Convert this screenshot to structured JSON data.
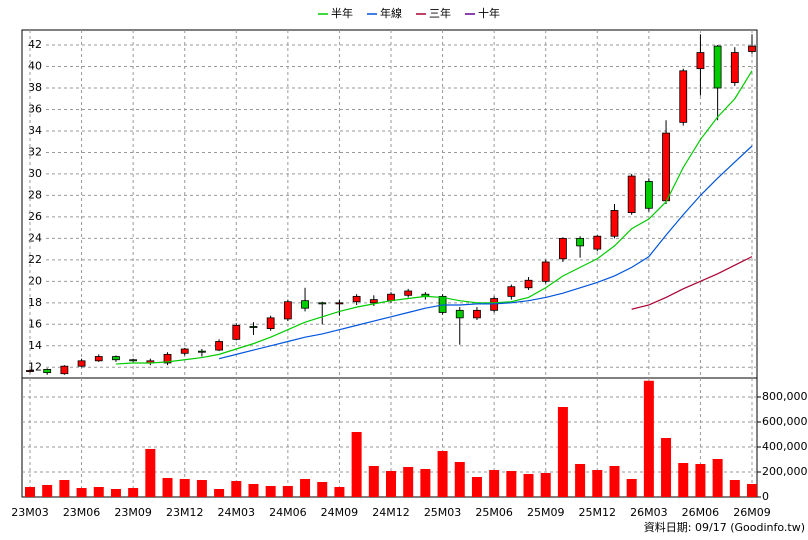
{
  "chart_data": [
    {
      "type": "candlestick",
      "categories": [
        "23M03",
        null,
        null,
        "23M06",
        null,
        null,
        "23M09",
        null,
        null,
        "23M12",
        null,
        null,
        "24M03",
        null,
        null,
        "24M06",
        null,
        null,
        "24M09",
        null,
        null,
        "24M12",
        null,
        null,
        "25M03",
        null,
        null,
        "25M06",
        null,
        null,
        "25M09",
        null,
        null,
        "25M12",
        null,
        null,
        "26M03",
        null,
        null,
        "26M06",
        null,
        null,
        "26M09"
      ],
      "open": [
        11.6,
        11.8,
        11.4,
        12.1,
        12.6,
        13.0,
        12.7,
        12.4,
        12.4,
        13.3,
        13.5,
        13.6,
        14.6,
        15.8,
        15.6,
        16.5,
        18.2,
        18.0,
        17.9,
        18.1,
        18.0,
        18.2,
        18.7,
        18.8,
        18.6,
        17.3,
        16.6,
        17.3,
        18.6,
        19.4,
        20.0,
        22.1,
        24.0,
        23.0,
        24.2,
        26.4,
        29.3,
        27.5,
        34.8,
        39.8,
        41.9,
        38.5,
        41.4
      ],
      "high": [
        11.8,
        11.9,
        12.2,
        12.8,
        13.2,
        13.1,
        12.8,
        12.8,
        13.4,
        13.8,
        13.7,
        14.6,
        16.1,
        16.2,
        16.8,
        18.3,
        19.4,
        18.1,
        18.3,
        18.8,
        18.7,
        19.0,
        19.3,
        19.0,
        18.8,
        17.6,
        17.6,
        18.6,
        19.7,
        20.4,
        22.0,
        24.1,
        24.2,
        24.3,
        27.2,
        30.0,
        29.6,
        35.0,
        39.8,
        43.0,
        42.0,
        41.8,
        43.0
      ],
      "low": [
        11.5,
        11.3,
        11.3,
        12.0,
        12.5,
        12.5,
        12.5,
        12.2,
        12.2,
        13.1,
        13.0,
        13.5,
        14.5,
        15.0,
        15.4,
        16.3,
        17.2,
        16.0,
        16.8,
        17.8,
        17.7,
        18.0,
        18.5,
        18.3,
        16.9,
        14.1,
        16.4,
        17.1,
        18.3,
        19.2,
        19.8,
        21.8,
        22.2,
        22.8,
        24.0,
        26.2,
        26.5,
        27.2,
        34.5,
        37.3,
        35.0,
        38.2,
        41.2
      ],
      "close": [
        11.7,
        11.5,
        12.1,
        12.6,
        13.0,
        12.7,
        12.6,
        12.6,
        13.2,
        13.7,
        13.4,
        14.4,
        15.9,
        15.7,
        16.6,
        18.1,
        17.5,
        17.9,
        18.0,
        18.6,
        18.3,
        18.8,
        19.1,
        18.6,
        17.1,
        16.6,
        17.3,
        18.4,
        19.5,
        20.1,
        21.8,
        24.0,
        23.3,
        24.2,
        26.6,
        29.8,
        26.8,
        33.8,
        39.6,
        41.3,
        38.0,
        41.3,
        41.9
      ],
      "up_color": "#ff0000",
      "down_color": "#00cc00",
      "series": [
        {
          "name": "半年",
          "color": "#00cc00",
          "values": [
            null,
            null,
            null,
            null,
            null,
            12.3,
            12.4,
            12.4,
            12.5,
            12.7,
            12.9,
            13.2,
            13.7,
            14.2,
            14.8,
            15.5,
            16.2,
            16.7,
            17.2,
            17.6,
            17.9,
            18.2,
            18.4,
            18.6,
            18.5,
            18.2,
            18.0,
            18.0,
            18.1,
            18.5,
            19.4,
            20.5,
            21.3,
            22.1,
            23.3,
            24.9,
            25.8,
            27.4,
            30.6,
            33.2,
            35.3,
            37.0,
            39.6
          ]
        },
        {
          "name": "年線",
          "color": "#0055dd",
          "values": [
            null,
            null,
            null,
            null,
            null,
            null,
            null,
            null,
            null,
            null,
            null,
            12.8,
            13.2,
            13.6,
            14.0,
            14.4,
            14.8,
            15.1,
            15.5,
            15.9,
            16.3,
            16.7,
            17.1,
            17.5,
            17.8,
            17.8,
            17.9,
            17.9,
            18.0,
            18.2,
            18.5,
            18.9,
            19.4,
            19.9,
            20.5,
            21.3,
            22.3,
            24.3,
            26.2,
            28.0,
            29.6,
            31.1,
            32.6
          ]
        },
        {
          "name": "三年",
          "color": "#aa0033",
          "values": [
            null,
            null,
            null,
            null,
            null,
            null,
            null,
            null,
            null,
            null,
            null,
            null,
            null,
            null,
            null,
            null,
            null,
            null,
            null,
            null,
            null,
            null,
            null,
            null,
            null,
            null,
            null,
            null,
            null,
            null,
            null,
            null,
            null,
            null,
            null,
            17.4,
            17.8,
            18.5,
            19.3,
            20.0,
            20.7,
            21.5,
            22.3
          ]
        },
        {
          "name": "十年",
          "color": "#660099",
          "values": [
            null,
            null,
            null,
            null,
            null,
            null,
            null,
            null,
            null,
            null,
            null,
            null,
            null,
            null,
            null,
            null,
            null,
            null,
            null,
            null,
            null,
            null,
            null,
            null,
            null,
            null,
            null,
            null,
            null,
            null,
            null,
            null,
            null,
            null,
            null,
            null,
            null,
            null,
            null,
            null,
            null,
            null,
            null
          ]
        }
      ],
      "ylim": [
        11,
        43.4
      ],
      "yticks": [
        12,
        14,
        16,
        18,
        20,
        22,
        24,
        26,
        28,
        30,
        32,
        34,
        36,
        38,
        40,
        42
      ],
      "grid": true
    },
    {
      "type": "bar",
      "values": [
        80000,
        96000,
        136000,
        72000,
        80000,
        64000,
        72000,
        384000,
        152000,
        144000,
        136000,
        64000,
        128000,
        104000,
        88000,
        88000,
        144000,
        120000,
        80000,
        520000,
        248000,
        208000,
        240000,
        224000,
        368000,
        280000,
        160000,
        216000,
        208000,
        184000,
        192000,
        720000,
        264000,
        216000,
        248000,
        144000,
        930000,
        472000,
        272000,
        264000,
        304000,
        136000,
        104000
      ],
      "color": "#ff0000",
      "ylim": [
        0,
        952000
      ],
      "yticks": [
        0,
        {
          "value": 200000,
          "label": "200,000"
        },
        {
          "value": 400000,
          "label": "400,000"
        },
        {
          "value": 600000,
          "label": "600,000"
        },
        {
          "value": 800000,
          "label": "800,000"
        }
      ],
      "grid": true
    }
  ],
  "footer": "資料日期: 09/17  (Goodinfo.tw)"
}
